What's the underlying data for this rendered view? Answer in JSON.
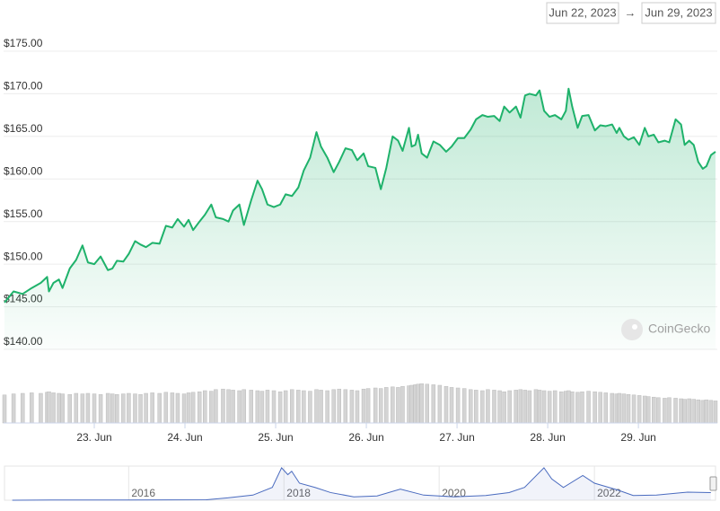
{
  "chart_data": {
    "type": "line",
    "header": {
      "from": "Jun 22, 2023",
      "arrow": "→",
      "to": "Jun 29, 2023"
    },
    "watermark": "CoinGecko",
    "color": "#1fb26b",
    "x": [
      22.01,
      22.11,
      22.21,
      22.31,
      22.41,
      22.48,
      22.5,
      22.55,
      22.61,
      22.65,
      22.73,
      22.8,
      22.87,
      22.93,
      23.0,
      23.07,
      23.15,
      23.2,
      23.25,
      23.32,
      23.38,
      23.45,
      23.51,
      23.57,
      23.64,
      23.72,
      23.79,
      23.86,
      23.92,
      23.99,
      24.04,
      24.09,
      24.16,
      24.22,
      24.29,
      24.34,
      24.42,
      24.48,
      24.53,
      24.6,
      24.65,
      24.73,
      24.8,
      24.85,
      24.91,
      24.98,
      25.05,
      25.11,
      25.18,
      25.25,
      25.31,
      25.38,
      25.45,
      25.5,
      25.57,
      25.64,
      25.7,
      25.77,
      25.84,
      25.9,
      25.97,
      26.02,
      26.1,
      26.16,
      26.22,
      26.29,
      26.35,
      26.4,
      26.47,
      26.5,
      26.54,
      26.57,
      26.61,
      26.67,
      26.74,
      26.81,
      26.88,
      26.94,
      27.01,
      27.08,
      27.15,
      27.21,
      27.28,
      27.34,
      27.41,
      27.47,
      27.52,
      27.58,
      27.65,
      27.7,
      27.75,
      27.8,
      27.87,
      27.91,
      27.96,
      28.02,
      28.08,
      28.15,
      28.2,
      28.23,
      28.27,
      28.33,
      28.38,
      28.45,
      28.52,
      28.58,
      28.64,
      28.71,
      28.76,
      28.79,
      28.84,
      28.89,
      28.95,
      29.01,
      29.07,
      29.11,
      29.17,
      29.22,
      29.29,
      29.34,
      29.41,
      29.47,
      29.51,
      29.56,
      29.61,
      29.66,
      29.71,
      29.75,
      29.8,
      29.85
    ],
    "values": [
      145.5,
      146.8,
      146.5,
      147.2,
      147.8,
      148.5,
      146.8,
      147.8,
      148.2,
      147.2,
      149.5,
      150.5,
      152.2,
      150.2,
      150.0,
      150.9,
      149.3,
      149.5,
      150.4,
      150.3,
      151.2,
      152.7,
      152.3,
      152.0,
      152.5,
      152.4,
      154.5,
      154.3,
      155.3,
      154.4,
      155.2,
      154.0,
      155.0,
      155.8,
      157.0,
      155.5,
      155.3,
      155.0,
      156.3,
      157.0,
      154.6,
      157.5,
      159.8,
      158.8,
      157.0,
      156.7,
      157.0,
      158.2,
      158.0,
      159.0,
      161.0,
      162.5,
      165.5,
      163.8,
      162.5,
      160.8,
      162.0,
      163.6,
      163.4,
      162.2,
      163.0,
      161.5,
      161.3,
      158.8,
      161.3,
      165.0,
      164.5,
      163.3,
      166.0,
      163.8,
      164.0,
      165.2,
      163.0,
      162.5,
      164.4,
      164.0,
      163.2,
      163.8,
      164.8,
      164.8,
      165.8,
      167.0,
      167.5,
      167.3,
      167.4,
      166.8,
      168.5,
      167.8,
      168.5,
      167.2,
      169.8,
      170.0,
      169.8,
      170.4,
      168.0,
      167.3,
      167.5,
      167.0,
      168.0,
      170.6,
      168.5,
      166.0,
      167.4,
      167.5,
      165.7,
      166.3,
      166.2,
      166.4,
      165.4,
      166.0,
      165.0,
      164.6,
      164.9,
      164.0,
      166.0,
      165.0,
      165.2,
      164.3,
      164.5,
      164.3,
      167.0,
      166.4,
      164.0,
      164.5,
      164.0,
      162.0,
      161.2,
      161.5,
      162.8,
      163.2
    ],
    "xlim": [
      22,
      29.87
    ],
    "xticks": [
      {
        "value": 23,
        "label": "23. Jun"
      },
      {
        "value": 24,
        "label": "24. Jun"
      },
      {
        "value": 25,
        "label": "25. Jun"
      },
      {
        "value": 26,
        "label": "26. Jun"
      },
      {
        "value": 27,
        "label": "27. Jun"
      },
      {
        "value": 28,
        "label": "28. Jun"
      },
      {
        "value": 29,
        "label": "29. Jun"
      }
    ],
    "ylim": [
      140,
      175
    ],
    "yticks": [
      {
        "value": 140,
        "label": "$140.00"
      },
      {
        "value": 145,
        "label": "$145.00"
      },
      {
        "value": 150,
        "label": "$150.00"
      },
      {
        "value": 155,
        "label": "$155.00"
      },
      {
        "value": 160,
        "label": "$160.00"
      },
      {
        "value": 165,
        "label": "$165.00"
      },
      {
        "value": 170,
        "label": "$170.00"
      },
      {
        "value": 175,
        "label": "$175.00"
      }
    ],
    "grid": true,
    "volume": {
      "color": "#d4d4d4",
      "ylim": [
        0,
        100
      ],
      "values": [
        52,
        54,
        55,
        56,
        55,
        57,
        58,
        56,
        55,
        54,
        53,
        55,
        54,
        55,
        54,
        53,
        55,
        54,
        53,
        54,
        55,
        54,
        53,
        55,
        56,
        55,
        57,
        56,
        55,
        54,
        56,
        57,
        58,
        60,
        59,
        62,
        63,
        62,
        61,
        60,
        62,
        61,
        60,
        59,
        61,
        60,
        58,
        60,
        62,
        61,
        60,
        59,
        62,
        61,
        60,
        62,
        63,
        62,
        61,
        60,
        63,
        64,
        65,
        64,
        66,
        67,
        66,
        68,
        69,
        70,
        71,
        72,
        73,
        72,
        71,
        70,
        68,
        66,
        65,
        64,
        62,
        61,
        60,
        62,
        61,
        60,
        58,
        60,
        61,
        62,
        61,
        60,
        62,
        61,
        60,
        59,
        60,
        58,
        59,
        60,
        58,
        57,
        58,
        59,
        58,
        57,
        56,
        55,
        54,
        55,
        54,
        53,
        52,
        51,
        50,
        49,
        48,
        47,
        46,
        47,
        46,
        45,
        44,
        45,
        44,
        43,
        42,
        43,
        42,
        41
      ]
    },
    "navigator": {
      "color": "#4a6bbf",
      "x": [
        2014.5,
        2015,
        2016,
        2016.5,
        2017,
        2017.3,
        2017.6,
        2017.85,
        2017.97,
        2018.05,
        2018.1,
        2018.2,
        2018.4,
        2018.6,
        2018.9,
        2019.2,
        2019.5,
        2019.8,
        2020.2,
        2020.6,
        2020.9,
        2021.1,
        2021.35,
        2021.45,
        2021.6,
        2021.85,
        2022.0,
        2022.3,
        2022.5,
        2022.8,
        2023.2,
        2023.5
      ],
      "values": [
        0,
        2,
        3,
        4,
        5,
        30,
        60,
        150,
        380,
        300,
        340,
        200,
        150,
        90,
        40,
        50,
        130,
        60,
        40,
        55,
        90,
        150,
        380,
        250,
        150,
        290,
        200,
        120,
        55,
        60,
        95,
        90
      ],
      "xlim": [
        2014.4,
        2023.56
      ],
      "ylim": [
        0,
        400
      ],
      "xticks": [
        2016,
        2018,
        2020,
        2022
      ]
    }
  }
}
